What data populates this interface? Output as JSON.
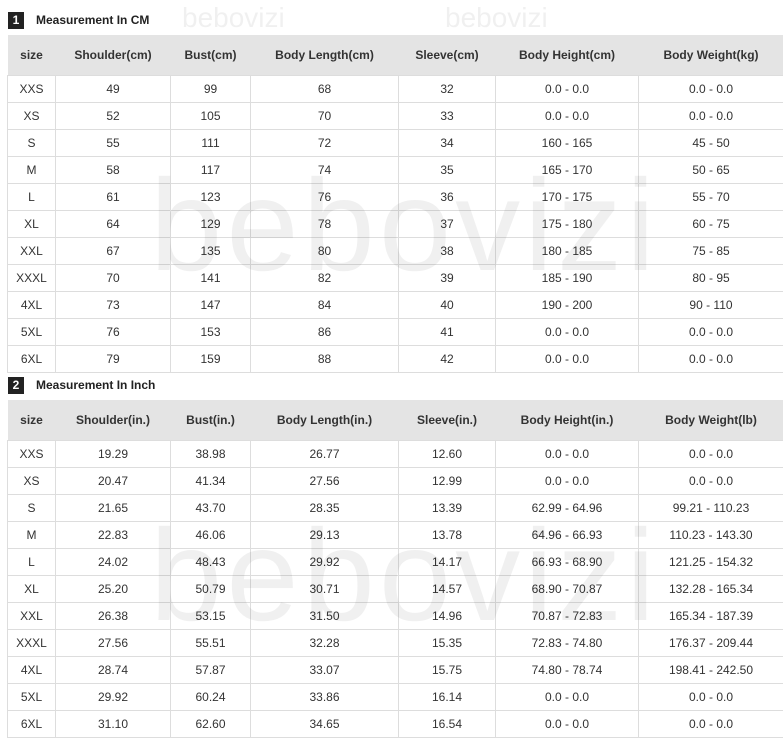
{
  "watermark": "bebovizi",
  "sections": [
    {
      "number": "1",
      "title": "Measurement In CM",
      "headers": [
        "size",
        "Shoulder(cm)",
        "Bust(cm)",
        "Body Length(cm)",
        "Sleeve(cm)",
        "Body Height(cm)",
        "Body Weight(kg)"
      ],
      "rows": [
        [
          "XXS",
          "49",
          "99",
          "68",
          "32",
          "0.0 - 0.0",
          "0.0 - 0.0"
        ],
        [
          "XS",
          "52",
          "105",
          "70",
          "33",
          "0.0 - 0.0",
          "0.0 - 0.0"
        ],
        [
          "S",
          "55",
          "111",
          "72",
          "34",
          "160 - 165",
          "45 - 50"
        ],
        [
          "M",
          "58",
          "117",
          "74",
          "35",
          "165 - 170",
          "50 - 65"
        ],
        [
          "L",
          "61",
          "123",
          "76",
          "36",
          "170 - 175",
          "55 - 70"
        ],
        [
          "XL",
          "64",
          "129",
          "78",
          "37",
          "175 - 180",
          "60 - 75"
        ],
        [
          "XXL",
          "67",
          "135",
          "80",
          "38",
          "180 - 185",
          "75 - 85"
        ],
        [
          "XXXL",
          "70",
          "141",
          "82",
          "39",
          "185 - 190",
          "80 - 95"
        ],
        [
          "4XL",
          "73",
          "147",
          "84",
          "40",
          "190 - 200",
          "90 - 110"
        ],
        [
          "5XL",
          "76",
          "153",
          "86",
          "41",
          "0.0 - 0.0",
          "0.0 - 0.0"
        ],
        [
          "6XL",
          "79",
          "159",
          "88",
          "42",
          "0.0 - 0.0",
          "0.0 - 0.0"
        ]
      ]
    },
    {
      "number": "2",
      "title": "Measurement In Inch",
      "headers": [
        "size",
        "Shoulder(in.)",
        "Bust(in.)",
        "Body Length(in.)",
        "Sleeve(in.)",
        "Body Height(in.)",
        "Body Weight(lb)"
      ],
      "rows": [
        [
          "XXS",
          "19.29",
          "38.98",
          "26.77",
          "12.60",
          "0.0 - 0.0",
          "0.0 - 0.0"
        ],
        [
          "XS",
          "20.47",
          "41.34",
          "27.56",
          "12.99",
          "0.0 - 0.0",
          "0.0 - 0.0"
        ],
        [
          "S",
          "21.65",
          "43.70",
          "28.35",
          "13.39",
          "62.99 - 64.96",
          "99.21 - 110.23"
        ],
        [
          "M",
          "22.83",
          "46.06",
          "29.13",
          "13.78",
          "64.96 - 66.93",
          "110.23 - 143.30"
        ],
        [
          "L",
          "24.02",
          "48.43",
          "29.92",
          "14.17",
          "66.93 - 68.90",
          "121.25 - 154.32"
        ],
        [
          "XL",
          "25.20",
          "50.79",
          "30.71",
          "14.57",
          "68.90 - 70.87",
          "132.28 - 165.34"
        ],
        [
          "XXL",
          "26.38",
          "53.15",
          "31.50",
          "14.96",
          "70.87 - 72.83",
          "165.34 - 187.39"
        ],
        [
          "XXXL",
          "27.56",
          "55.51",
          "32.28",
          "15.35",
          "72.83 - 74.80",
          "176.37 - 209.44"
        ],
        [
          "4XL",
          "28.74",
          "57.87",
          "33.07",
          "15.75",
          "74.80 - 78.74",
          "198.41 - 242.50"
        ],
        [
          "5XL",
          "29.92",
          "60.24",
          "33.86",
          "16.14",
          "0.0 - 0.0",
          "0.0 - 0.0"
        ],
        [
          "6XL",
          "31.10",
          "62.60",
          "34.65",
          "16.54",
          "0.0 - 0.0",
          "0.0 - 0.0"
        ]
      ]
    }
  ]
}
